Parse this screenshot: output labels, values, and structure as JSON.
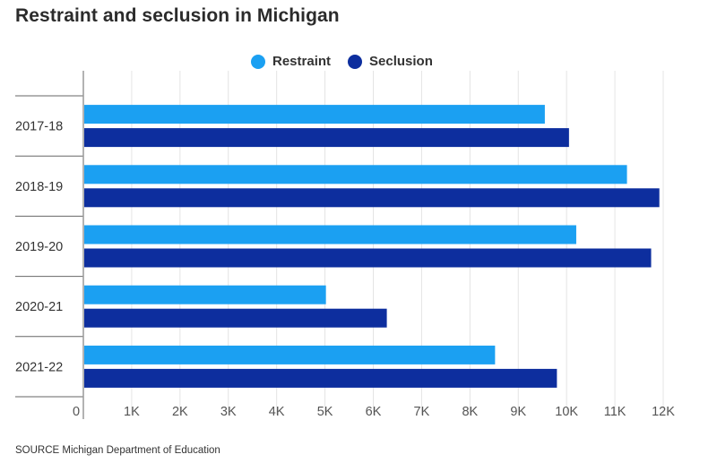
{
  "title": "Restraint and seclusion in Michigan",
  "source": "SOURCE Michigan Department of Education",
  "colors": {
    "restraint": "#1ba0f2",
    "seclusion": "#0d2e9e",
    "grid": "#e4e4e4",
    "axis": "#9a9a9a"
  },
  "chart_data": {
    "type": "bar",
    "orientation": "horizontal",
    "categories": [
      "2017-18",
      "2018-19",
      "2019-20",
      "2020-21",
      "2021-22"
    ],
    "series": [
      {
        "name": "Restraint",
        "values": [
          9550,
          11250,
          10200,
          5020,
          8520
        ]
      },
      {
        "name": "Seclusion",
        "values": [
          10050,
          11920,
          11750,
          6280,
          9800
        ]
      }
    ],
    "xlim": [
      0,
      12000
    ],
    "xticks": [
      0,
      1000,
      2000,
      3000,
      4000,
      5000,
      6000,
      7000,
      8000,
      9000,
      10000,
      11000,
      12000
    ],
    "xtick_labels": [
      "0",
      "1K",
      "2K",
      "3K",
      "4K",
      "5K",
      "6K",
      "7K",
      "8K",
      "9K",
      "10K",
      "11K",
      "12K"
    ],
    "grid": true,
    "legend_position": "top-center"
  }
}
